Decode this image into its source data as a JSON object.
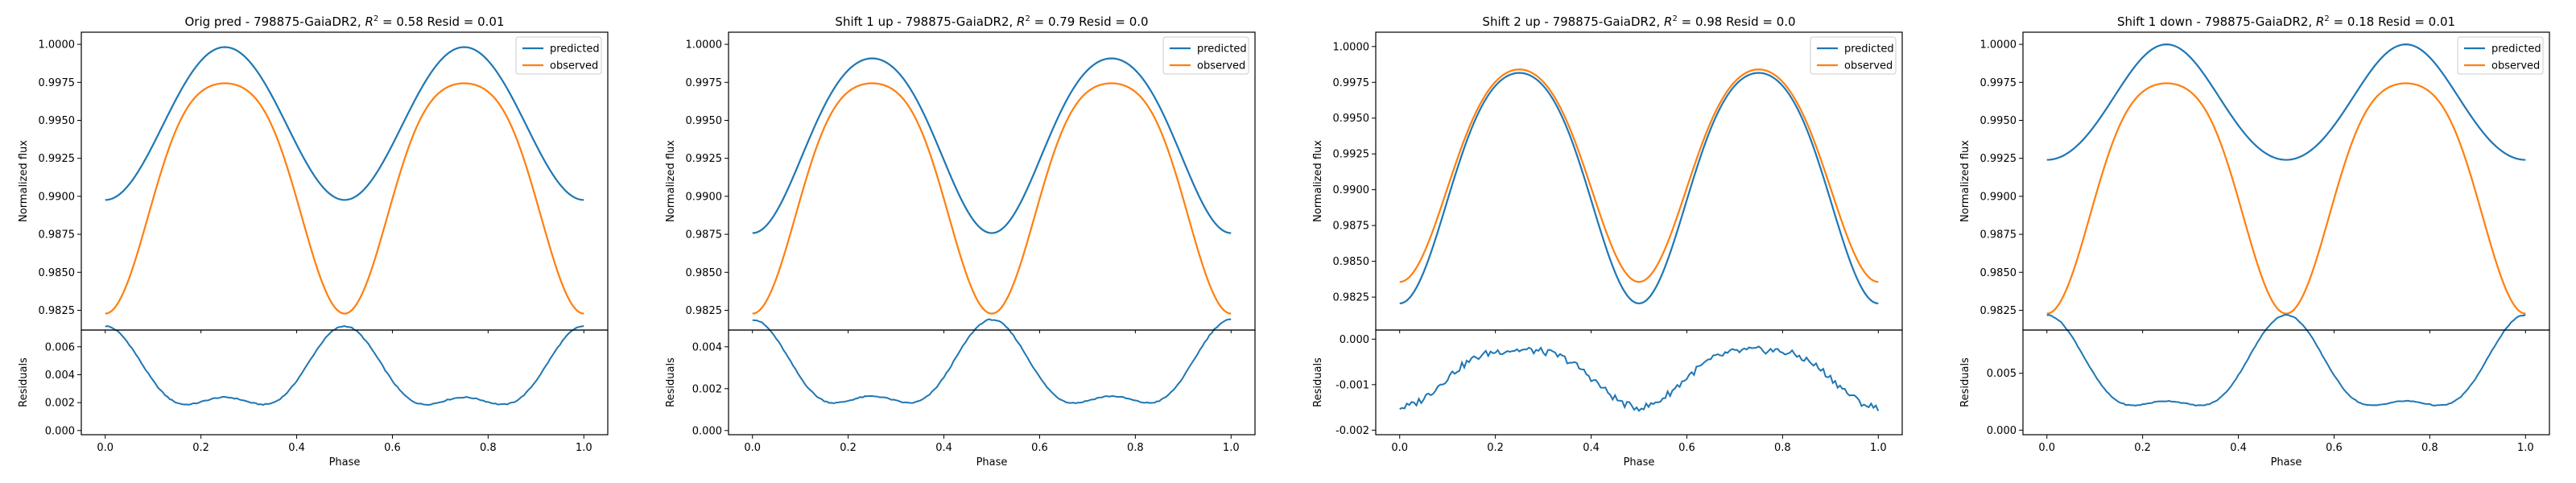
{
  "figure": {
    "colors": {
      "predicted": "#1f77b4",
      "observed": "#ff7f0e",
      "axes": "#000000"
    },
    "legend_placement": "top-right"
  },
  "chart_data": [
    {
      "type": "line",
      "title": "Orig pred - 798875-GaiaDR2, $R^2 = 0.58$ Resid = 0.01",
      "title_parts": {
        "prefix": "Orig pred - 798875-GaiaDR2, ",
        "r2_symbol": "R",
        "r2_sup": "2",
        "suffix": " = 0.58 Resid = 0.01"
      },
      "xlabel": "Phase",
      "ylabel_top": "Normalized flux",
      "ylabel_bottom": "Residuals",
      "xlim": [
        -0.05,
        1.05
      ],
      "ylim_top": [
        0.9812,
        1.0008
      ],
      "yticks_top": [
        "0.9825",
        "0.9850",
        "0.9875",
        "0.9900",
        "0.9925",
        "0.9950",
        "0.9975",
        "1.0000"
      ],
      "ylim_bottom": [
        -0.0003,
        0.0072
      ],
      "yticks_bottom": [
        "0.000",
        "0.002",
        "0.004",
        "0.006"
      ],
      "xticks": [
        "0.0",
        "0.2",
        "0.4",
        "0.6",
        "0.8",
        "1.0"
      ],
      "series": [
        {
          "name": "predicted",
          "model": {
            "mean": 0.99488,
            "a2": 0.00503,
            "a4": 9e-05,
            "sharp": 0
          }
        },
        {
          "name": "observed",
          "model": {
            "mean": 0.99114,
            "a2": 0.00758,
            "a4": 0.00128,
            "sharp": 0
          }
        }
      ],
      "residual_noise": 4e-05,
      "legend": [
        "predicted",
        "observed"
      ]
    },
    {
      "type": "line",
      "title": "Shift 1 up - 798875-GaiaDR2, $R^2 = 0.79$ Resid = 0.0",
      "title_parts": {
        "prefix": "Shift 1 up - 798875-GaiaDR2, ",
        "r2_symbol": "R",
        "r2_sup": "2",
        "suffix": " = 0.79 Resid = 0.0"
      },
      "xlabel": "Phase",
      "ylabel_top": "Normalized flux",
      "ylabel_bottom": "Residuals",
      "xlim": [
        -0.05,
        1.05
      ],
      "ylim_top": [
        0.9812,
        1.0008
      ],
      "yticks_top": [
        "0.9825",
        "0.9850",
        "0.9875",
        "0.9900",
        "0.9925",
        "0.9950",
        "0.9975",
        "1.0000"
      ],
      "ylim_bottom": [
        -0.0002,
        0.0048
      ],
      "yticks_bottom": [
        "0.000",
        "0.002",
        "0.004"
      ],
      "xticks": [
        "0.0",
        "0.2",
        "0.4",
        "0.6",
        "0.8",
        "1.0"
      ],
      "series": [
        {
          "name": "predicted",
          "model": {
            "mean": 0.99379,
            "a2": 0.00575,
            "a4": 0.00046,
            "sharp": 0
          }
        },
        {
          "name": "observed",
          "model": {
            "mean": 0.99114,
            "a2": 0.00758,
            "a4": 0.00128,
            "sharp": 0
          }
        }
      ],
      "residual_noise": 3e-05,
      "legend": [
        "predicted",
        "observed"
      ]
    },
    {
      "type": "line",
      "title": "Shift 2 up - 798875-GaiaDR2, $R^2 = 0.98$ Resid = 0.0",
      "title_parts": {
        "prefix": "Shift 2 up - 798875-GaiaDR2, ",
        "r2_symbol": "R",
        "r2_sup": "2",
        "suffix": " = 0.98 Resid = 0.0"
      },
      "xlabel": "Phase",
      "ylabel_top": "Normalized flux",
      "ylabel_bottom": "Residuals",
      "xlim": [
        -0.05,
        1.05
      ],
      "ylim_top": [
        0.9802,
        1.001
      ],
      "yticks_top": [
        "0.9825",
        "0.9850",
        "0.9875",
        "0.9900",
        "0.9925",
        "0.9950",
        "0.9975",
        "1.0000"
      ],
      "ylim_bottom": [
        -0.0021,
        0.0002
      ],
      "yticks_bottom": [
        "-0.002",
        "-0.001",
        "0.000"
      ],
      "xticks": [
        "0.0",
        "0.2",
        "0.4",
        "0.6",
        "0.8",
        "1.0"
      ],
      "series": [
        {
          "name": "predicted",
          "model": {
            "mean": 0.99103,
            "a2": 0.00805,
            "a4": 0.00092,
            "sharp": 0
          }
        },
        {
          "name": "observed",
          "model": {
            "mean": 0.99178,
            "a2": 0.00742,
            "a4": 0.0008,
            "sharp": 0
          }
        }
      ],
      "residual_noise": 8e-05,
      "legend": [
        "predicted",
        "observed"
      ]
    },
    {
      "type": "line",
      "title": "Shift 1 down - 798875-GaiaDR2, $R^2 = 0.18$ Resid = 0.01",
      "title_parts": {
        "prefix": "Shift 1 down - 798875-GaiaDR2, ",
        "r2_symbol": "R",
        "r2_sup": "2",
        "suffix": " = 0.18 Resid = 0.01"
      },
      "xlabel": "Phase",
      "ylabel_top": "Normalized flux",
      "ylabel_bottom": "Residuals",
      "xlim": [
        -0.05,
        1.05
      ],
      "ylim_top": [
        0.9812,
        1.0008
      ],
      "yticks_top": [
        "0.9825",
        "0.9850",
        "0.9875",
        "0.9900",
        "0.9925",
        "0.9950",
        "0.9975",
        "1.0000"
      ],
      "ylim_bottom": [
        -0.0004,
        0.0088
      ],
      "yticks_bottom": [
        "0.000",
        "0.005"
      ],
      "xticks": [
        "0.0",
        "0.2",
        "0.4",
        "0.6",
        "0.8",
        "1.0"
      ],
      "series": [
        {
          "name": "predicted",
          "model": {
            "mean": 0.996,
            "a2": 0.0038,
            "a4": -0.0002,
            "sharp": 0
          }
        },
        {
          "name": "observed",
          "model": {
            "mean": 0.99114,
            "a2": 0.00758,
            "a4": 0.00128,
            "sharp": 0
          }
        }
      ],
      "residual_noise": 4e-05,
      "legend": [
        "predicted",
        "observed"
      ]
    }
  ]
}
